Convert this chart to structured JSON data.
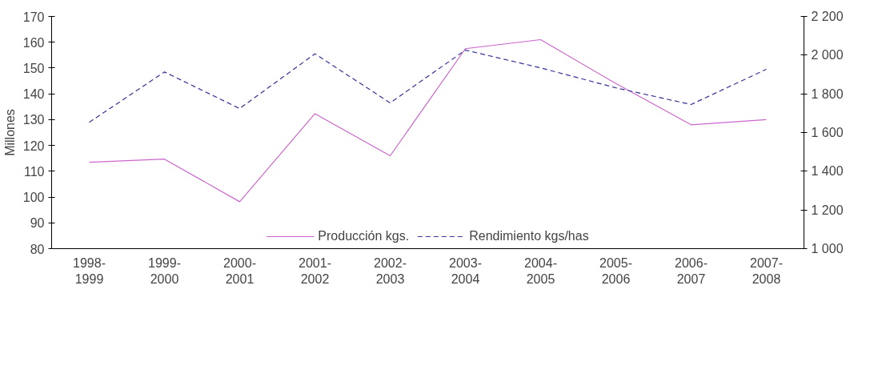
{
  "chart_data": {
    "type": "line",
    "ylabel": "Millones",
    "categories": [
      "1998-\n1999",
      "1999-\n2000",
      "2000-\n2001",
      "2001-\n2002",
      "2002-\n2003",
      "2003-\n2004",
      "2004-\n2005",
      "2005-\n2006",
      "2006-\n2007",
      "2007-\n2008"
    ],
    "series": [
      {
        "name": "Producción kgs.",
        "color": "#cc66cc",
        "line_style": "solid",
        "values": [
          113.5,
          114.7,
          98.2,
          132.3,
          116,
          157.5,
          161,
          144,
          128,
          130
        ]
      },
      {
        "name": "Rendimiento kgs/has",
        "color": "#333399",
        "line_style": "dashed",
        "axis": "y2",
        "values": [
          1653,
          1913,
          1724,
          2007,
          1753,
          2026,
          1934,
          1831,
          1745,
          1927
        ]
      }
    ],
    "ylim": [
      80,
      170
    ],
    "yticks": [
      80,
      90,
      100,
      110,
      120,
      130,
      140,
      150,
      160,
      170
    ],
    "y2lim": [
      1000,
      2200
    ],
    "y2ticks": [
      {
        "value": 1000,
        "label": "1 000"
      },
      {
        "value": 1200,
        "label": "1 200"
      },
      {
        "value": 1400,
        "label": "1 400"
      },
      {
        "value": 1600,
        "label": "1 600"
      },
      {
        "value": 1800,
        "label": "1 800"
      },
      {
        "value": 2000,
        "label": "2 000"
      },
      {
        "value": 2200,
        "label": "2 200"
      }
    ],
    "grid": false,
    "legend": "bottom"
  }
}
